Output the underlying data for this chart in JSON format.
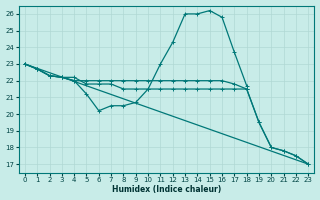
{
  "xlabel": "Humidex (Indice chaleur)",
  "bg_color": "#c8ece8",
  "grid_color": "#b0d8d4",
  "line_color": "#007878",
  "ylim": [
    16.5,
    26.5
  ],
  "xlim": [
    -0.5,
    23.5
  ],
  "yticks": [
    17,
    18,
    19,
    20,
    21,
    22,
    23,
    24,
    25,
    26
  ],
  "xticks": [
    0,
    1,
    2,
    3,
    4,
    5,
    6,
    7,
    8,
    9,
    10,
    11,
    12,
    13,
    14,
    15,
    16,
    17,
    18,
    19,
    20,
    21,
    22,
    23
  ],
  "line1_x": [
    0,
    1,
    2,
    3,
    4,
    5,
    6,
    7,
    8,
    9,
    10,
    11,
    12,
    13,
    14,
    15,
    16,
    17,
    18
  ],
  "line1_y": [
    23.0,
    22.7,
    22.3,
    22.2,
    22.2,
    21.8,
    21.8,
    21.8,
    21.5,
    21.5,
    21.5,
    23.0,
    24.3,
    26.0,
    26.0,
    26.2,
    25.8,
    23.7,
    21.7
  ],
  "line2_x": [
    0,
    1,
    2,
    3,
    4,
    5,
    6,
    7,
    8,
    9,
    10,
    11,
    12,
    13,
    14,
    15,
    16,
    17,
    18,
    19,
    20,
    21,
    22,
    23
  ],
  "line2_y": [
    23.0,
    22.7,
    22.3,
    22.2,
    22.0,
    22.0,
    22.0,
    22.0,
    22.0,
    22.0,
    22.0,
    22.0,
    22.0,
    22.0,
    22.0,
    22.0,
    22.0,
    21.8,
    21.5,
    19.5,
    18.0,
    17.8,
    17.5,
    17.0
  ],
  "line3_x": [
    0,
    23
  ],
  "line3_y": [
    23.0,
    17.0
  ],
  "line4_x": [
    0,
    1,
    2,
    3,
    4,
    5,
    6,
    7,
    8,
    9,
    10,
    11,
    12,
    13,
    14,
    15,
    16,
    17,
    18,
    19,
    20,
    21,
    22,
    23
  ],
  "line4_y": [
    23.0,
    22.7,
    22.3,
    22.2,
    22.0,
    21.2,
    20.2,
    20.5,
    20.5,
    20.7,
    21.5,
    21.5,
    21.5,
    21.5,
    21.5,
    21.5,
    21.5,
    21.5,
    21.5,
    19.5,
    18.0,
    17.8,
    17.5,
    17.0
  ]
}
